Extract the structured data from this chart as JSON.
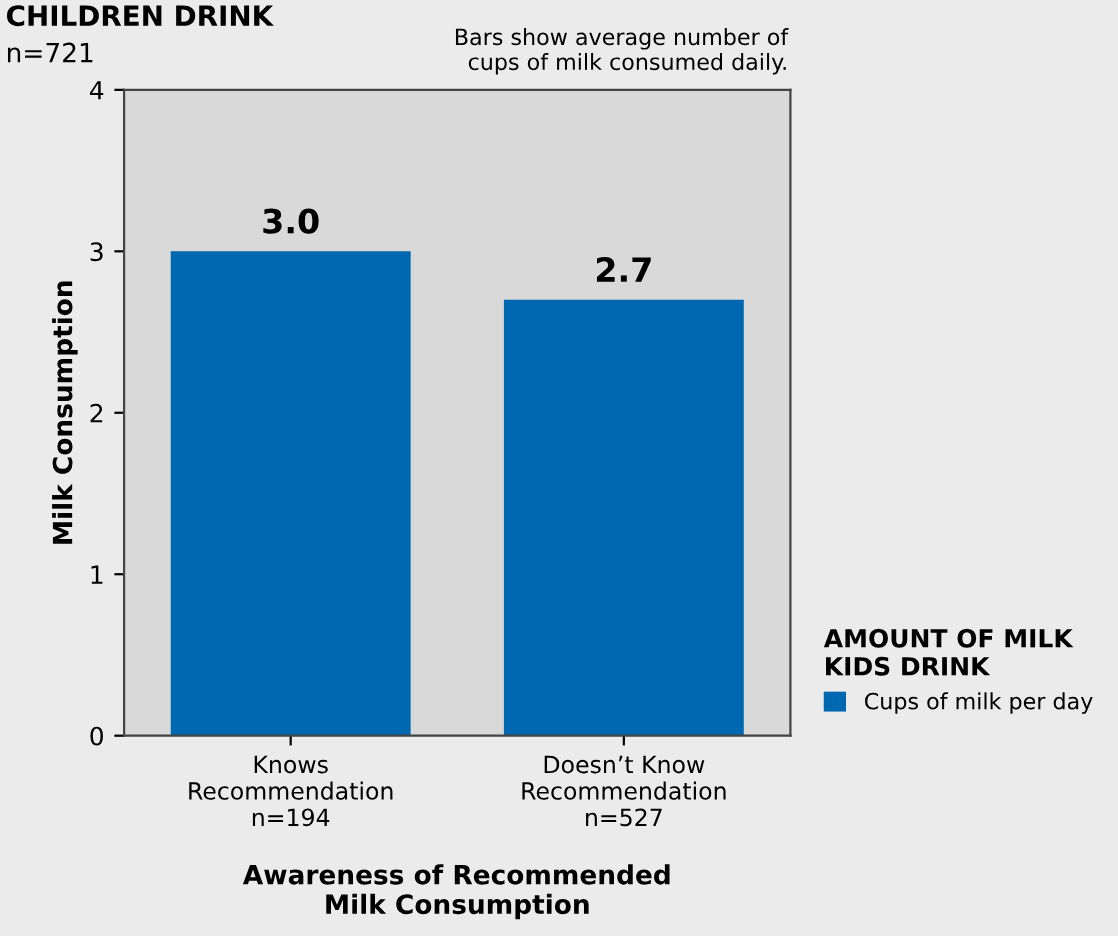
{
  "chart_data": {
    "type": "bar",
    "title": "CHILDREN DRINK",
    "subtitle": "n=721",
    "xlabel": "Awareness of Recommended\nMilk Consumption",
    "ylabel": "Milk Consumption",
    "legend_title": "AMOUNT OF MILK\nKIDS DRINK",
    "annotations": [
      "Bars show average number of\ncups of milk consumed daily."
    ],
    "categories": [
      "Knows\nRecommendation\nn=194",
      "Doesn’t Know\nRecommendation\nn=527"
    ],
    "series": [
      {
        "name": "Cups of milk per day",
        "color": "#0067b1",
        "values": [
          3.0,
          2.7
        ]
      }
    ],
    "value_labels": [
      "3.0",
      "2.7"
    ],
    "ylim": [
      0,
      4
    ],
    "yticks": [
      0,
      1,
      2,
      3,
      4
    ],
    "grid": false,
    "legend": "right"
  }
}
